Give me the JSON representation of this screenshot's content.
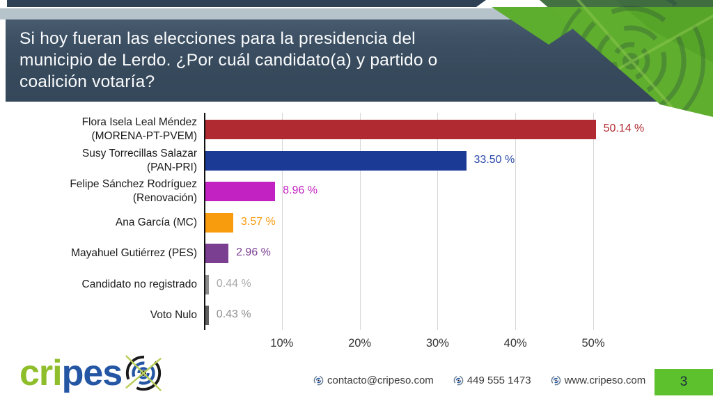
{
  "header": {
    "title_lines": [
      "Si hoy fueran las elecciones para la presidencia del",
      "municipio de Lerdo. ¿Por cuál candidato(a) y partido o",
      "coalición votaría?"
    ]
  },
  "chart_data": {
    "type": "bar",
    "orientation": "horizontal",
    "title": "",
    "xlabel": "",
    "ylabel": "",
    "xlim": [
      0,
      55
    ],
    "grid": true,
    "categories": [
      [
        "Flora Isela Leal Méndez",
        "(MORENA-PT-PVEM)"
      ],
      [
        "Susy Torrecillas Salazar",
        "(PAN-PRI)"
      ],
      [
        "Felipe Sánchez Rodríguez",
        "(Renovación)"
      ],
      [
        "Ana García (MC)"
      ],
      [
        "Mayahuel Gutiérrez (PES)"
      ],
      [
        "Candidato no registrado"
      ],
      [
        "Voto Nulo"
      ]
    ],
    "values": [
      50.14,
      33.5,
      8.96,
      3.57,
      2.96,
      0.44,
      0.43
    ],
    "value_labels": [
      "50.14 %",
      "33.50 %",
      "8.96 %",
      "3.57 %",
      "2.96 %",
      "0.44 %",
      "0.43 %"
    ],
    "bar_colors": [
      "#b02a31",
      "#1b3a96",
      "#c322c3",
      "#f89b0d",
      "#7b3f92",
      "#8c8c8c",
      "#5f5f5f"
    ],
    "value_label_colors": [
      "#b02a31",
      "#2847a8",
      "#c322c3",
      "#f89b0d",
      "#7b3f92",
      "#a9a9a9",
      "#8e8e8e"
    ],
    "x_ticks": [
      {
        "value": 10,
        "label": "10%"
      },
      {
        "value": 20,
        "label": "20%"
      },
      {
        "value": 30,
        "label": "30%"
      },
      {
        "value": 40,
        "label": "40%"
      },
      {
        "value": 50,
        "label": "50%"
      }
    ]
  },
  "footer": {
    "logo_green": "cri",
    "logo_blue": "pes",
    "contacts": [
      {
        "label": "contacto@cripeso.com"
      },
      {
        "label": "449 555 1473"
      },
      {
        "label": "www.cripeso.com"
      }
    ],
    "page_number": "3"
  },
  "colors": {
    "header_navy": "#374a5c",
    "top_strip_navy": "#2d4054",
    "gray_strip": "#b7c3ca",
    "ribbon_green": "#5dae2f",
    "page_box_green": "#5cc12d",
    "logo_green": "#8fbe2b",
    "logo_blue": "#2456a4"
  }
}
